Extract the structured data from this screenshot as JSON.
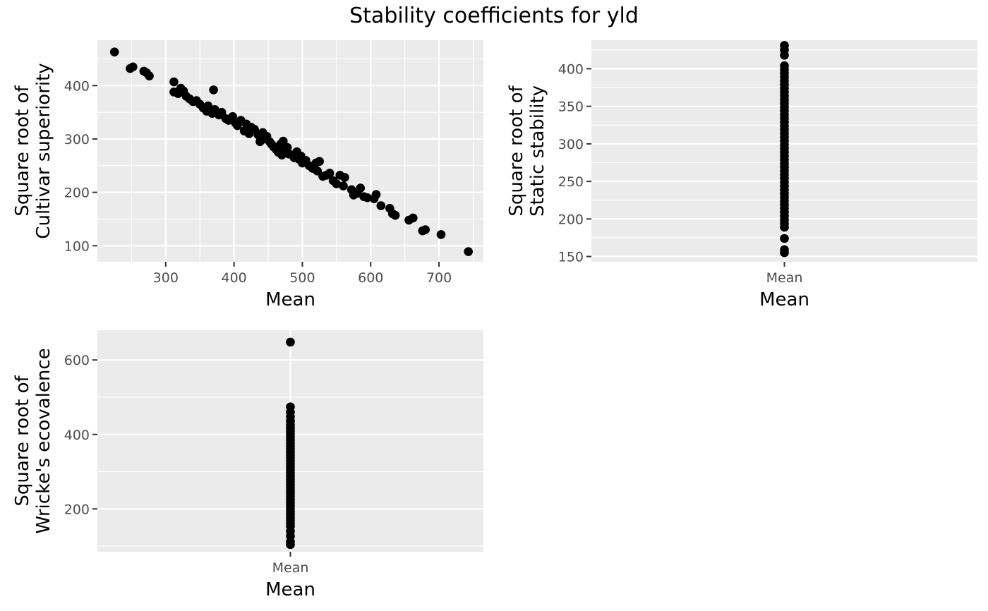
{
  "title": "Stability coefficients for yld",
  "chart_data": [
    {
      "type": "scatter",
      "xlabel": "Mean",
      "ylabel_lines": [
        "Square root of",
        "Cultivar superiority"
      ],
      "xlim": [
        200,
        765
      ],
      "ylim": [
        70,
        485
      ],
      "xticks": [
        300,
        400,
        500,
        600,
        700
      ],
      "yticks": [
        100,
        200,
        300,
        400
      ],
      "x": [
        225,
        248,
        252,
        268,
        272,
        276,
        312,
        312,
        318,
        322,
        326,
        330,
        335,
        340,
        345,
        350,
        355,
        360,
        362,
        368,
        370,
        372,
        378,
        382,
        388,
        392,
        398,
        402,
        405,
        410,
        415,
        418,
        422,
        425,
        430,
        435,
        438,
        442,
        445,
        448,
        452,
        455,
        458,
        462,
        465,
        468,
        470,
        472,
        475,
        478,
        480,
        485,
        488,
        492,
        495,
        498,
        500,
        505,
        510,
        515,
        520,
        522,
        525,
        530,
        535,
        540,
        545,
        550,
        555,
        560,
        562,
        572,
        575,
        580,
        585,
        590,
        595,
        605,
        608,
        615,
        628,
        632,
        636,
        656,
        662,
        676,
        680,
        703,
        743
      ],
      "y": [
        463,
        432,
        435,
        427,
        424,
        418,
        407,
        388,
        385,
        395,
        390,
        380,
        375,
        370,
        372,
        365,
        358,
        352,
        362,
        348,
        392,
        355,
        345,
        350,
        338,
        335,
        342,
        330,
        325,
        335,
        315,
        328,
        310,
        322,
        318,
        308,
        295,
        312,
        300,
        305,
        295,
        290,
        285,
        280,
        275,
        290,
        270,
        296,
        278,
        284,
        272,
        270,
        265,
        276,
        262,
        268,
        255,
        260,
        250,
        245,
        255,
        240,
        258,
        230,
        232,
        236,
        222,
        216,
        232,
        212,
        228,
        205,
        195,
        198,
        208,
        192,
        190,
        188,
        196,
        175,
        170,
        160,
        157,
        148,
        152,
        128,
        130,
        121,
        89
      ]
    },
    {
      "type": "scatter",
      "xlabel": "Mean",
      "ylabel_lines": [
        "Square root of",
        "Static stability"
      ],
      "categories": [
        "Mean"
      ],
      "ylim": [
        143,
        438
      ],
      "yticks": [
        150,
        200,
        250,
        300,
        350,
        400
      ],
      "y": [
        431,
        425,
        418,
        404,
        399,
        394,
        389,
        384,
        379,
        374,
        369,
        364,
        359,
        354,
        349,
        344,
        339,
        334,
        329,
        324,
        319,
        314,
        309,
        304,
        299,
        294,
        289,
        284,
        279,
        274,
        269,
        264,
        259,
        254,
        249,
        244,
        239,
        234,
        229,
        224,
        219,
        214,
        209,
        204,
        199,
        194,
        189,
        174,
        159,
        155
      ]
    },
    {
      "type": "scatter",
      "xlabel": "Mean",
      "ylabel_lines": [
        "Square root of",
        "Wricke's ecovalence"
      ],
      "categories": [
        "Mean"
      ],
      "ylim": [
        85,
        680
      ],
      "yticks": [
        200,
        400,
        600
      ],
      "y": [
        648,
        474,
        460,
        448,
        436,
        426,
        418,
        410,
        401,
        393,
        385,
        377,
        369,
        361,
        353,
        345,
        337,
        329,
        321,
        313,
        305,
        297,
        289,
        281,
        273,
        265,
        257,
        249,
        241,
        233,
        225,
        217,
        209,
        201,
        193,
        185,
        177,
        169,
        161,
        153,
        140,
        127,
        112,
        104
      ]
    }
  ]
}
